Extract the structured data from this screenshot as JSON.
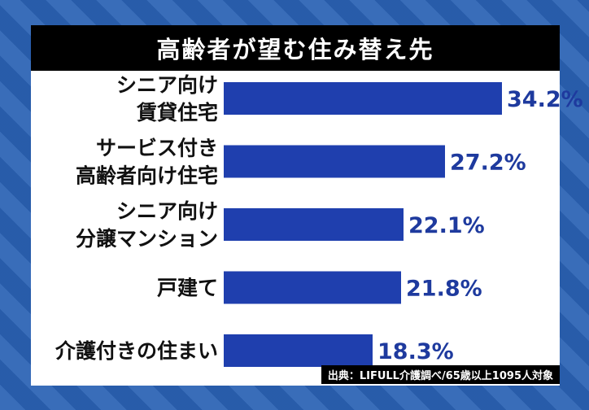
{
  "chart_data": {
    "type": "bar",
    "orientation": "horizontal",
    "title": "高齢者が望む住み替え先",
    "categories": [
      [
        "シニア向け",
        "賃貸住宅"
      ],
      [
        "サービス付き",
        "高齢者向け住宅"
      ],
      [
        "シニア向け",
        "分譲マンション"
      ],
      [
        "戸建て"
      ],
      [
        "介護付きの住まい"
      ]
    ],
    "values": [
      34.2,
      27.2,
      22.1,
      21.8,
      18.3
    ],
    "value_labels": [
      "34.2%",
      "27.2%",
      "22.1%",
      "21.8%",
      "18.3%"
    ],
    "xlim": [
      0,
      40
    ],
    "grid": false,
    "bar_color": "#1f3fae"
  },
  "source": "出典：LIFULL介護調べ/65歳以上1095人対象"
}
